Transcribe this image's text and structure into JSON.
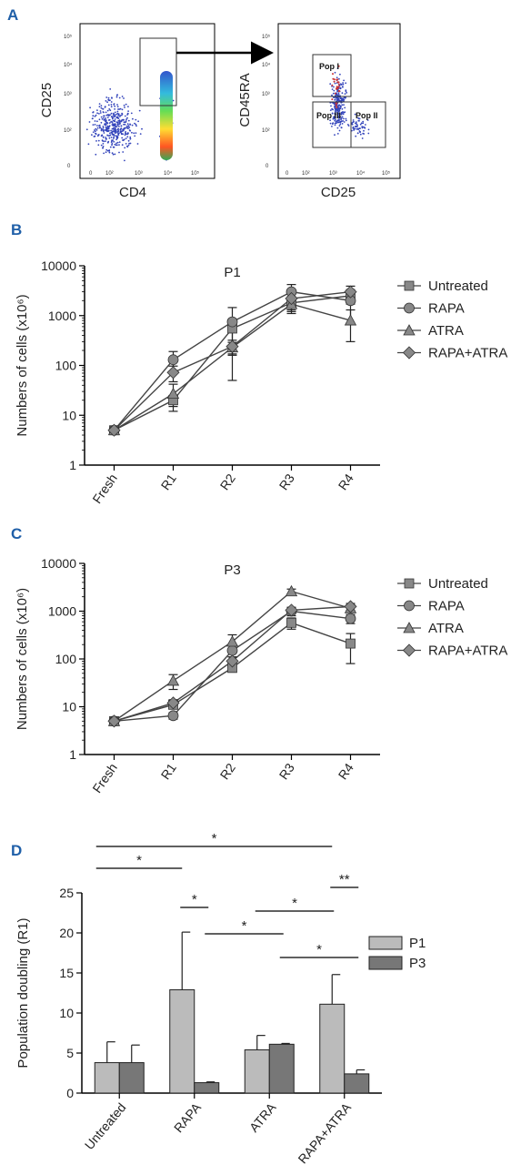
{
  "panel_labels": [
    "A",
    "B",
    "C",
    "D"
  ],
  "flow": {
    "plot1": {
      "xlabel": "CD4",
      "ylabel": "CD25",
      "xticks": [
        "0",
        "10²",
        "10³",
        "10⁴",
        "10⁵"
      ],
      "yticks": [
        "10⁵",
        "10⁴",
        "10³",
        "10²",
        "0"
      ]
    },
    "plot2": {
      "xlabel": "CD25",
      "ylabel": "CD45RA",
      "xticks": [
        "0",
        "10²",
        "10³",
        "10⁴",
        "10⁵"
      ],
      "yticks": [
        "10⁵",
        "10⁴",
        "10³",
        "10²",
        "0"
      ],
      "gates": [
        "Pop I",
        "Pop III",
        "Pop II"
      ]
    }
  },
  "chart_data": [
    {
      "type": "line",
      "title": "P1",
      "ylabel": "Numbers of cells (x10⁶)",
      "yscale": "log",
      "ylim": [
        1,
        10000
      ],
      "yticks": [
        "1",
        "10",
        "100",
        "1000",
        "10000"
      ],
      "categories": [
        "Fresh",
        "R1",
        "R2",
        "R3",
        "R4"
      ],
      "legend_position": "right",
      "series": [
        {
          "name": "Untreated",
          "marker": "square",
          "values": [
            5,
            20,
            550,
            1800,
            2500
          ],
          "err": [
            0,
            5,
            300,
            600,
            800
          ]
        },
        {
          "name": "RAPA",
          "marker": "circle",
          "values": [
            5,
            130,
            750,
            3000,
            2000
          ],
          "err": [
            0,
            60,
            700,
            1200,
            1300
          ]
        },
        {
          "name": "ATRA",
          "marker": "triangle",
          "values": [
            5,
            27,
            230,
            1700,
            800
          ],
          "err": [
            0,
            15,
            60,
            600,
            500
          ]
        },
        {
          "name": "RAPA+ATRA",
          "marker": "diamond",
          "values": [
            5,
            72,
            240,
            2200,
            3000
          ],
          "err": [
            0,
            25,
            80,
            900,
            900
          ]
        }
      ]
    },
    {
      "type": "line",
      "title": "P3",
      "ylabel": "Numbers of cells (x10⁶)",
      "yscale": "log",
      "ylim": [
        1,
        10000
      ],
      "yticks": [
        "1",
        "10",
        "100",
        "1000",
        "10000"
      ],
      "categories": [
        "Fresh",
        "R1",
        "R2",
        "R3",
        "R4"
      ],
      "legend_position": "right",
      "series": [
        {
          "name": "Untreated",
          "marker": "square",
          "values": [
            5,
            11,
            65,
            570,
            210
          ],
          "err": [
            0,
            2,
            12,
            150,
            130
          ]
        },
        {
          "name": "RAPA",
          "marker": "circle",
          "values": [
            5,
            6.5,
            150,
            1000,
            700
          ],
          "err": [
            0,
            1,
            40,
            200,
            150
          ]
        },
        {
          "name": "ATRA",
          "marker": "triangle",
          "values": [
            5,
            35,
            230,
            2600,
            1150
          ],
          "err": [
            0,
            12,
            90,
            300,
            200
          ]
        },
        {
          "name": "RAPA+ATRA",
          "marker": "diamond",
          "values": [
            5,
            12,
            90,
            1050,
            1250
          ],
          "err": [
            0,
            2,
            20,
            150,
            200
          ]
        }
      ]
    },
    {
      "type": "bar",
      "ylabel": "Population doubling (R1)",
      "ylim": [
        0,
        25
      ],
      "yticks": [
        "0",
        "5",
        "10",
        "15",
        "20",
        "25"
      ],
      "categories": [
        "Untreated",
        "RAPA",
        "ATRA",
        "RAPA+ATRA"
      ],
      "legend_position": "right",
      "series": [
        {
          "name": "P1",
          "values": [
            3.8,
            12.9,
            5.4,
            11.1
          ],
          "err": [
            2.6,
            7.2,
            1.8,
            3.7
          ]
        },
        {
          "name": "P3",
          "values": [
            3.8,
            1.3,
            6.1,
            2.4
          ],
          "err": [
            2.2,
            0.1,
            0.1,
            0.5
          ]
        }
      ],
      "significance": [
        {
          "label": "*",
          "from": "Untreated P1",
          "to": "RAPA P1"
        },
        {
          "label": "*",
          "from": "Untreated P1",
          "to": "RAPA+ATRA P1"
        },
        {
          "label": "*",
          "from": "RAPA P1",
          "to": "RAPA P3"
        },
        {
          "label": "*",
          "from": "RAPA P3",
          "to": "ATRA P3"
        },
        {
          "label": "*",
          "from": "ATRA P1",
          "to": "RAPA+ATRA P1"
        },
        {
          "label": "*",
          "from": "ATRA P3",
          "to": "RAPA+ATRA P3"
        },
        {
          "label": "**",
          "from": "RAPA+ATRA P1",
          "to": "RAPA+ATRA P3"
        }
      ]
    }
  ]
}
